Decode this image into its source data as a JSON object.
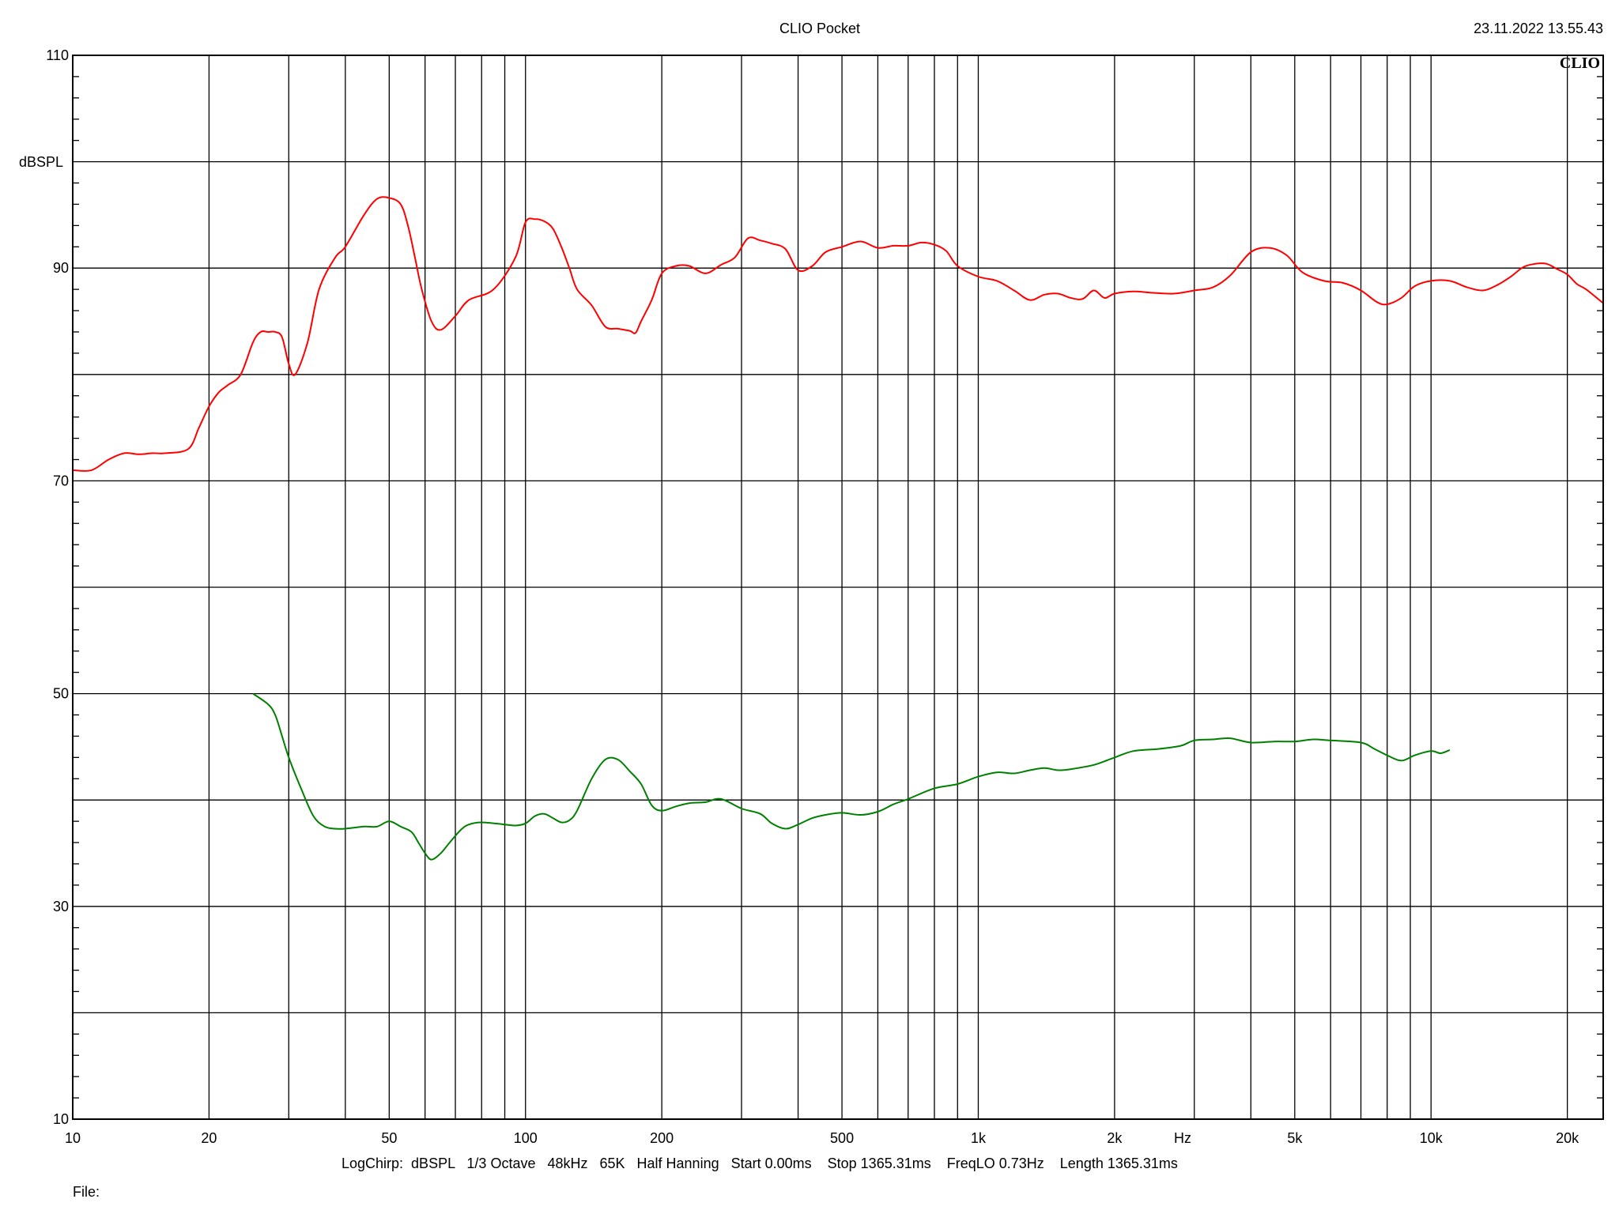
{
  "header": {
    "title": "CLIO Pocket",
    "timestamp": "23.11.2022 13.55.43",
    "brand": "CLIO"
  },
  "footer": {
    "settings": "LogChirp:  dBSPL   1/3 Octave   48kHz   65K   Half Hanning   Start 0.00ms    Stop 1365.31ms    FreqLO 0.73Hz    Length 1365.31ms",
    "file_label": "File:"
  },
  "chart_data": {
    "type": "line",
    "title": "CLIO Pocket",
    "xlabel": "Hz",
    "ylabel": "dBSPL",
    "xscale": "log",
    "xlim": [
      10,
      24000
    ],
    "ylim": [
      10,
      110
    ],
    "grid": true,
    "x_tick_labels": [
      {
        "value": 10,
        "label": "10"
      },
      {
        "value": 20,
        "label": "20"
      },
      {
        "value": 50,
        "label": "50"
      },
      {
        "value": 100,
        "label": "100"
      },
      {
        "value": 200,
        "label": "200"
      },
      {
        "value": 500,
        "label": "500"
      },
      {
        "value": 1000,
        "label": "1k"
      },
      {
        "value": 2000,
        "label": "2k"
      },
      {
        "value": 5000,
        "label": "5k"
      },
      {
        "value": 10000,
        "label": "10k"
      },
      {
        "value": 20000,
        "label": "20k"
      }
    ],
    "y_tick_labels": [
      {
        "value": 10,
        "label": "10"
      },
      {
        "value": 30,
        "label": "30"
      },
      {
        "value": 50,
        "label": "50"
      },
      {
        "value": 70,
        "label": "70"
      },
      {
        "value": 90,
        "label": "90"
      },
      {
        "value": 110,
        "label": "110"
      }
    ],
    "series": [
      {
        "color": "#ff0000",
        "x": [
          10,
          11,
          12,
          13,
          14,
          15,
          16,
          18,
          19,
          20,
          21,
          22,
          23.5,
          25,
          26,
          27,
          28,
          29,
          30,
          31,
          33,
          35,
          38,
          40,
          44,
          47,
          50,
          53,
          55,
          57,
          59,
          62,
          65,
          70,
          75,
          85,
          95,
          100,
          105,
          110,
          115,
          120,
          125,
          130,
          140,
          150,
          160,
          170,
          175,
          180,
          190,
          200,
          215,
          230,
          250,
          270,
          290,
          310,
          330,
          350,
          375,
          400,
          430,
          460,
          500,
          550,
          600,
          650,
          700,
          750,
          800,
          850,
          900,
          1000,
          1100,
          1200,
          1300,
          1400,
          1500,
          1600,
          1700,
          1800,
          1900,
          2000,
          2200,
          2400,
          2700,
          3000,
          3300,
          3600,
          4000,
          4400,
          4800,
          5200,
          5800,
          6400,
          7000,
          7600,
          8000,
          8600,
          9200,
          10000,
          11000,
          12000,
          13000,
          14000,
          15000,
          16000,
          17000,
          18000,
          19000,
          20000,
          21000,
          22000,
          24000
        ],
        "values": [
          71,
          71,
          72,
          72.6,
          72.5,
          72.6,
          72.6,
          73,
          75,
          77,
          78.3,
          79,
          80,
          83,
          84,
          84,
          84,
          83.5,
          81,
          80,
          83,
          88,
          91,
          92,
          95,
          96.5,
          96.6,
          96,
          94,
          91,
          88,
          85,
          84.2,
          85.5,
          87,
          88,
          91,
          94.3,
          94.6,
          94.4,
          93.7,
          92,
          90,
          88,
          86.5,
          84.5,
          84.3,
          84.1,
          83.9,
          85,
          87,
          89.5,
          90.2,
          90.2,
          89.5,
          90.3,
          91,
          92.8,
          92.6,
          92.3,
          91.8,
          89.8,
          90.2,
          91.5,
          92,
          92.5,
          91.9,
          92.1,
          92.1,
          92.4,
          92.2,
          91.6,
          90.2,
          89.2,
          88.8,
          87.9,
          87,
          87.5,
          87.6,
          87.2,
          87.1,
          87.9,
          87.2,
          87.6,
          87.8,
          87.7,
          87.6,
          87.9,
          88.2,
          89.3,
          91.5,
          91.9,
          91.2,
          89.6,
          88.8,
          88.6,
          87.9,
          86.8,
          86.6,
          87.2,
          88.3,
          88.8,
          88.8,
          88.2,
          87.9,
          88.4,
          89.2,
          90.1,
          90.4,
          90.4,
          89.9,
          89.4,
          88.5,
          88,
          86.7
        ]
      },
      {
        "color": "#008000",
        "x": [
          25,
          27,
          28,
          29,
          30,
          32,
          34,
          36,
          38,
          40,
          44,
          47,
          50,
          53,
          56,
          58,
          60,
          62,
          65,
          68,
          72,
          75,
          80,
          90,
          95,
          100,
          105,
          110,
          115,
          120,
          125,
          130,
          140,
          150,
          160,
          170,
          180,
          190,
          200,
          215,
          230,
          250,
          270,
          300,
          330,
          350,
          375,
          400,
          430,
          460,
          500,
          550,
          600,
          650,
          700,
          800,
          900,
          1000,
          1100,
          1200,
          1300,
          1400,
          1500,
          1600,
          1800,
          2000,
          2200,
          2500,
          2800,
          3000,
          3300,
          3600,
          4000,
          4500,
          5000,
          5500,
          6000,
          7000,
          7500,
          8000,
          8600,
          9200,
          10000,
          10500,
          11000
        ],
        "values": [
          50,
          49,
          48,
          46,
          44,
          41,
          38.5,
          37.5,
          37.3,
          37.3,
          37.5,
          37.5,
          38,
          37.5,
          37,
          36,
          35,
          34.4,
          35,
          36,
          37.2,
          37.7,
          37.9,
          37.7,
          37.6,
          37.8,
          38.5,
          38.7,
          38.3,
          37.9,
          38.1,
          39,
          42,
          43.8,
          43.8,
          42.7,
          41.5,
          39.5,
          39,
          39.4,
          39.7,
          39.8,
          40.1,
          39.2,
          38.7,
          37.8,
          37.3,
          37.7,
          38.3,
          38.6,
          38.8,
          38.6,
          38.9,
          39.6,
          40.1,
          41.1,
          41.5,
          42.2,
          42.6,
          42.5,
          42.8,
          43,
          42.8,
          42.9,
          43.3,
          44,
          44.6,
          44.8,
          45.1,
          45.6,
          45.7,
          45.8,
          45.4,
          45.5,
          45.5,
          45.7,
          45.6,
          45.4,
          44.8,
          44.2,
          43.7,
          44.2,
          44.6,
          44.4,
          44.7
        ]
      }
    ]
  }
}
